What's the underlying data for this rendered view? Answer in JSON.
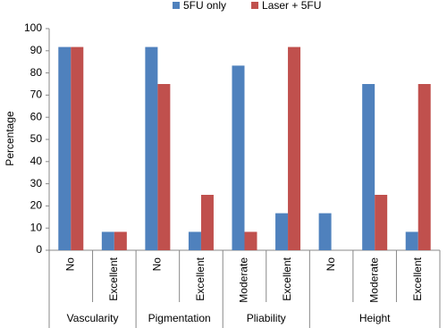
{
  "chart_data": {
    "type": "bar",
    "y_label": "Percentage",
    "groups": [
      {
        "name": "Vascularity",
        "categories": [
          "No",
          "Excellent"
        ]
      },
      {
        "name": "Pigmentation",
        "categories": [
          "No",
          "Excellent"
        ]
      },
      {
        "name": "Pliability",
        "categories": [
          "Moderate",
          "Excellent"
        ]
      },
      {
        "name": "Height",
        "categories": [
          "No",
          "Moderate",
          "Excellent"
        ]
      }
    ],
    "series": [
      {
        "name": "5FU only",
        "color": "#4f81bd",
        "values": [
          91.7,
          8.3,
          91.7,
          8.3,
          83.3,
          16.7,
          16.7,
          75,
          8.3
        ]
      },
      {
        "name": "Laser + 5FU",
        "color": "#c0504d",
        "values": [
          91.7,
          8.3,
          75,
          25,
          8.3,
          91.7,
          0,
          25,
          75
        ]
      }
    ],
    "ylim": [
      0,
      100
    ],
    "yticks": [
      0,
      10,
      20,
      30,
      40,
      50,
      60,
      70,
      80,
      90,
      100
    ],
    "grid": false,
    "legend": "top"
  }
}
